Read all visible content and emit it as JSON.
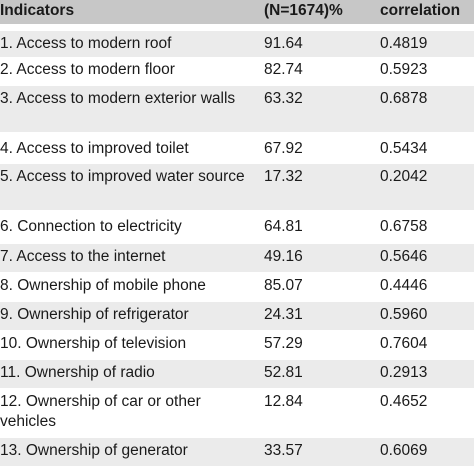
{
  "table": {
    "headers": [
      "Indicators",
      "(N=1674)%",
      "correlation"
    ],
    "rows": [
      {
        "indicator": "1. Access to modern roof",
        "percent": "91.64",
        "correlation": "0.4819"
      },
      {
        "indicator": "2. Access to modern floor",
        "percent": "82.74",
        "correlation": "0.5923"
      },
      {
        "indicator": "3. Access to modern exterior walls",
        "percent": "63.32",
        "correlation": "0.6878"
      },
      {
        "indicator": "4. Access to improved toilet",
        "percent": "67.92",
        "correlation": "0.5434"
      },
      {
        "indicator": "5. Access to improved water source",
        "percent": "17.32",
        "correlation": "0.2042"
      },
      {
        "indicator": "6. Connection to electricity",
        "percent": "64.81",
        "correlation": "0.6758"
      },
      {
        "indicator": "7. Access to the internet",
        "percent": "49.16",
        "correlation": "0.5646"
      },
      {
        "indicator": "8. Ownership of mobile phone",
        "percent": "85.07",
        "correlation": "0.4446"
      },
      {
        "indicator": "9. Ownership of refrigerator",
        "percent": "24.31",
        "correlation": "0.5960"
      },
      {
        "indicator": "10. Ownership of television",
        "percent": "57.29",
        "correlation": "0.7604"
      },
      {
        "indicator": "11. Ownership of radio",
        "percent": "52.81",
        "correlation": "0.2913"
      },
      {
        "indicator": "12. Ownership of car or other vehicles",
        "percent": "12.84",
        "correlation": "0.4652"
      },
      {
        "indicator": "13. Ownership of generator",
        "percent": "33.57",
        "correlation": "0.6069"
      }
    ]
  }
}
